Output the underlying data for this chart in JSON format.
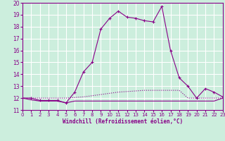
{
  "xlabel": "Windchill (Refroidissement éolien,°C)",
  "bg_color": "#cceedd",
  "grid_color": "#ffffff",
  "line_color": "#880088",
  "ylim": [
    11,
    20
  ],
  "xlim": [
    0,
    23
  ],
  "yticks": [
    11,
    12,
    13,
    14,
    15,
    16,
    17,
    18,
    19,
    20
  ],
  "xticks": [
    0,
    1,
    2,
    3,
    4,
    5,
    6,
    7,
    8,
    9,
    10,
    11,
    12,
    13,
    14,
    15,
    16,
    17,
    18,
    19,
    20,
    21,
    22,
    23
  ],
  "line1_x": [
    0,
    1,
    2,
    3,
    4,
    5,
    6,
    7,
    8,
    9,
    10,
    11,
    12,
    13,
    14,
    15,
    16,
    17,
    18,
    19,
    20,
    21,
    22,
    23
  ],
  "line1_y": [
    12.0,
    12.0,
    11.8,
    11.8,
    11.8,
    11.6,
    12.5,
    14.2,
    15.0,
    17.8,
    18.7,
    19.3,
    18.8,
    18.7,
    18.5,
    18.4,
    19.7,
    16.0,
    13.7,
    13.0,
    12.0,
    12.8,
    12.5,
    12.1
  ],
  "line2_x": [
    0,
    1,
    2,
    3,
    4,
    5,
    6,
    7,
    8,
    9,
    10,
    11,
    12,
    13,
    14,
    15,
    16,
    17,
    18,
    19,
    20,
    21,
    22,
    23
  ],
  "line2_y": [
    12.0,
    12.0,
    12.0,
    12.0,
    12.0,
    12.0,
    12.05,
    12.1,
    12.2,
    12.3,
    12.4,
    12.5,
    12.55,
    12.6,
    12.65,
    12.65,
    12.65,
    12.65,
    12.65,
    12.0,
    12.0,
    12.0,
    12.0,
    12.0
  ],
  "line3_x": [
    0,
    1,
    2,
    3,
    4,
    5,
    6,
    7,
    8,
    9,
    10,
    11,
    12,
    13,
    14,
    15,
    16,
    17,
    18,
    19,
    20,
    21,
    22,
    23
  ],
  "line3_y": [
    12.0,
    11.85,
    11.75,
    11.75,
    11.75,
    11.6,
    11.75,
    11.75,
    11.75,
    11.75,
    11.75,
    11.75,
    11.75,
    11.75,
    11.75,
    11.75,
    11.75,
    11.75,
    11.75,
    11.75,
    11.75,
    11.75,
    11.75,
    12.0
  ]
}
